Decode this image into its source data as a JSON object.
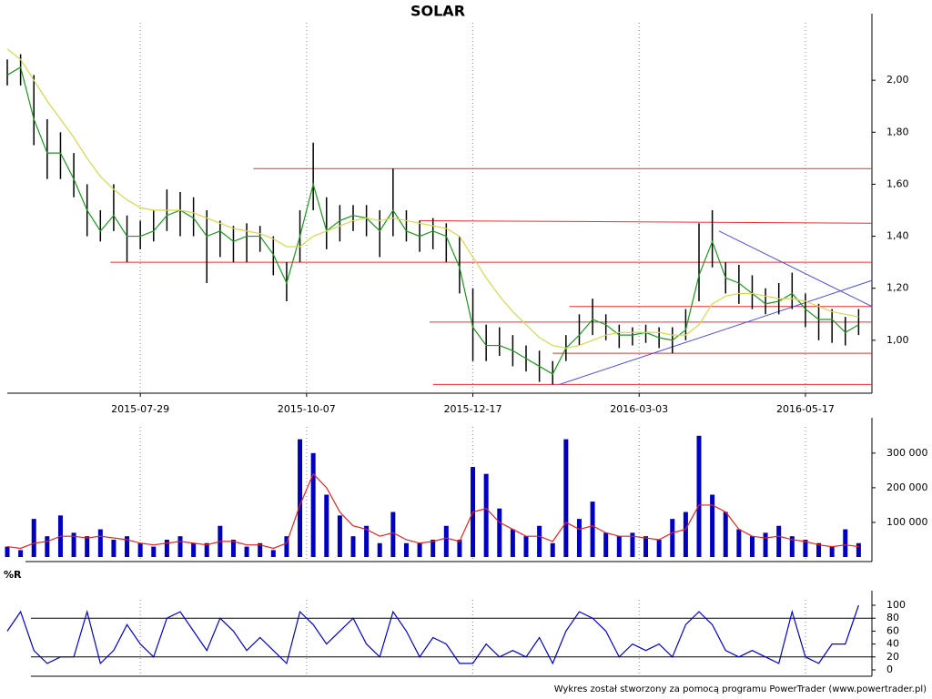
{
  "chart_data": [
    {
      "type": "hilo",
      "title": "SOLAR",
      "x": [
        0,
        4,
        8,
        12,
        16,
        20,
        24,
        28,
        32,
        36,
        40,
        44,
        48,
        52,
        56,
        60,
        64,
        68,
        72,
        76,
        80,
        84,
        88,
        92,
        96,
        100,
        104,
        108,
        112,
        116,
        120,
        124,
        128,
        132,
        136,
        140,
        144,
        148,
        152,
        156,
        160,
        164,
        168,
        172,
        176,
        180,
        184,
        188,
        192,
        196,
        200,
        204,
        208,
        212,
        216,
        220,
        224,
        228,
        232,
        236,
        240,
        244,
        248,
        252,
        256
      ],
      "high": [
        2.08,
        2.1,
        2.02,
        1.85,
        1.8,
        1.72,
        1.6,
        1.5,
        1.6,
        1.48,
        1.46,
        1.5,
        1.58,
        1.57,
        1.55,
        1.5,
        1.46,
        1.44,
        1.45,
        1.44,
        1.4,
        1.3,
        1.5,
        1.76,
        1.55,
        1.52,
        1.52,
        1.52,
        1.5,
        1.66,
        1.5,
        1.46,
        1.47,
        1.45,
        1.4,
        1.2,
        1.06,
        1.05,
        1.02,
        0.98,
        0.96,
        0.92,
        1.02,
        1.1,
        1.16,
        1.1,
        1.06,
        1.05,
        1.06,
        1.05,
        1.05,
        1.12,
        1.45,
        1.5,
        1.3,
        1.29,
        1.25,
        1.2,
        1.22,
        1.26,
        1.18,
        1.14,
        1.12,
        1.09,
        1.12
      ],
      "low": [
        1.98,
        1.98,
        1.75,
        1.62,
        1.62,
        1.55,
        1.4,
        1.38,
        1.42,
        1.3,
        1.35,
        1.38,
        1.42,
        1.4,
        1.4,
        1.22,
        1.32,
        1.3,
        1.3,
        1.34,
        1.25,
        1.15,
        1.3,
        1.5,
        1.35,
        1.38,
        1.42,
        1.4,
        1.32,
        1.4,
        1.38,
        1.34,
        1.35,
        1.3,
        1.18,
        0.92,
        0.92,
        0.94,
        0.9,
        0.88,
        0.84,
        0.83,
        0.92,
        0.98,
        1.02,
        1.0,
        0.97,
        0.98,
        0.99,
        0.97,
        0.95,
        1.0,
        1.15,
        1.28,
        1.18,
        1.14,
        1.12,
        1.1,
        1.1,
        1.12,
        1.05,
        1.0,
        0.99,
        0.98,
        1.02
      ],
      "series": [
        {
          "color": "#1a9a1a",
          "values": [
            2.02,
            2.05,
            1.85,
            1.72,
            1.72,
            1.62,
            1.5,
            1.42,
            1.48,
            1.4,
            1.4,
            1.42,
            1.48,
            1.5,
            1.47,
            1.4,
            1.42,
            1.38,
            1.4,
            1.4,
            1.33,
            1.22,
            1.4,
            1.6,
            1.42,
            1.46,
            1.48,
            1.47,
            1.42,
            1.5,
            1.42,
            1.4,
            1.42,
            1.4,
            1.28,
            1.05,
            0.98,
            0.98,
            0.96,
            0.93,
            0.9,
            0.87,
            0.97,
            1.02,
            1.08,
            1.06,
            1.02,
            1.02,
            1.03,
            1.01,
            1.0,
            1.04,
            1.25,
            1.38,
            1.24,
            1.22,
            1.18,
            1.14,
            1.15,
            1.18,
            1.12,
            1.08,
            1.08,
            1.03,
            1.06
          ]
        },
        {
          "color": "#d8d84a",
          "values": [
            2.12,
            2.08,
            2.0,
            1.92,
            1.85,
            1.78,
            1.7,
            1.63,
            1.58,
            1.54,
            1.51,
            1.5,
            1.5,
            1.5,
            1.49,
            1.47,
            1.45,
            1.43,
            1.42,
            1.41,
            1.39,
            1.36,
            1.36,
            1.4,
            1.42,
            1.44,
            1.46,
            1.47,
            1.46,
            1.47,
            1.46,
            1.45,
            1.44,
            1.43,
            1.4,
            1.32,
            1.24,
            1.17,
            1.11,
            1.06,
            1.01,
            0.98,
            0.97,
            0.98,
            1.0,
            1.02,
            1.03,
            1.03,
            1.03,
            1.03,
            1.02,
            1.02,
            1.06,
            1.14,
            1.17,
            1.18,
            1.18,
            1.17,
            1.16,
            1.16,
            1.15,
            1.13,
            1.11,
            1.1,
            1.09
          ]
        }
      ],
      "levels": [
        {
          "color": "#e83030",
          "x": [
            74,
            260
          ],
          "y": [
            1.66,
            1.66
          ]
        },
        {
          "color": "#e83030",
          "x": [
            31,
            260
          ],
          "y": [
            1.3,
            1.3
          ]
        },
        {
          "color": "#e83030",
          "x": [
            124,
            260
          ],
          "y": [
            1.46,
            1.45
          ]
        },
        {
          "color": "#e83030",
          "x": [
            127,
            260
          ],
          "y": [
            1.07,
            1.07
          ]
        },
        {
          "color": "#e83030",
          "x": [
            169,
            260
          ],
          "y": [
            1.13,
            1.13
          ]
        },
        {
          "color": "#e83030",
          "x": [
            164,
            260
          ],
          "y": [
            0.95,
            0.95
          ]
        },
        {
          "color": "#e83030",
          "x": [
            128,
            260
          ],
          "y": [
            0.83,
            0.83
          ]
        },
        {
          "color": "#4a4ae8",
          "x": [
            166,
            260
          ],
          "y": [
            0.83,
            1.23
          ]
        },
        {
          "color": "#4a4ae8",
          "x": [
            214,
            260
          ],
          "y": [
            1.42,
            1.13
          ]
        }
      ],
      "xlim": [
        0,
        260
      ],
      "xticks": [
        {
          "value": 40,
          "label": "2015-07-29"
        },
        {
          "value": 90,
          "label": "2015-10-07"
        },
        {
          "value": 140,
          "label": "2015-12-17"
        },
        {
          "value": 190,
          "label": "2016-03-03"
        },
        {
          "value": 240,
          "label": "2016-05-17"
        }
      ],
      "ylim": [
        0.8,
        2.2
      ],
      "yticks": [
        {
          "value": 1,
          "label": "1,00"
        },
        {
          "value": 1.2,
          "label": "1,20"
        },
        {
          "value": 1.4,
          "label": "1,40"
        },
        {
          "value": 1.6,
          "label": "1,60"
        },
        {
          "value": 1.8,
          "label": "1,80"
        },
        {
          "value": 2,
          "label": "2,00"
        }
      ]
    },
    {
      "type": "bar",
      "color": "#0000c0",
      "x": [
        0,
        4,
        8,
        12,
        16,
        20,
        24,
        28,
        32,
        36,
        40,
        44,
        48,
        52,
        56,
        60,
        64,
        68,
        72,
        76,
        80,
        84,
        88,
        92,
        96,
        100,
        104,
        108,
        112,
        116,
        120,
        124,
        128,
        132,
        136,
        140,
        144,
        148,
        152,
        156,
        160,
        164,
        168,
        172,
        176,
        180,
        184,
        188,
        192,
        196,
        200,
        204,
        208,
        212,
        216,
        220,
        224,
        228,
        232,
        236,
        240,
        244,
        248,
        252,
        256
      ],
      "values": [
        30000,
        20000,
        110000,
        60000,
        120000,
        70000,
        60000,
        80000,
        50000,
        60000,
        40000,
        30000,
        50000,
        60000,
        40000,
        40000,
        90000,
        50000,
        30000,
        40000,
        20000,
        60000,
        340000,
        300000,
        180000,
        120000,
        60000,
        90000,
        40000,
        130000,
        40000,
        40000,
        50000,
        90000,
        50000,
        260000,
        240000,
        140000,
        80000,
        60000,
        90000,
        40000,
        340000,
        110000,
        160000,
        70000,
        60000,
        70000,
        60000,
        50000,
        110000,
        130000,
        350000,
        180000,
        130000,
        80000,
        60000,
        70000,
        90000,
        60000,
        50000,
        40000,
        30000,
        80000,
        40000
      ],
      "series": [
        {
          "color": "#e82020",
          "values": [
            30000,
            25000,
            40000,
            45000,
            60000,
            60000,
            55000,
            60000,
            55000,
            50000,
            40000,
            35000,
            40000,
            45000,
            40000,
            35000,
            45000,
            45000,
            35000,
            35000,
            25000,
            40000,
            150000,
            240000,
            200000,
            130000,
            90000,
            80000,
            60000,
            70000,
            50000,
            40000,
            45000,
            55000,
            45000,
            130000,
            140000,
            100000,
            80000,
            60000,
            60000,
            45000,
            100000,
            80000,
            90000,
            70000,
            60000,
            60000,
            55000,
            50000,
            70000,
            80000,
            150000,
            150000,
            130000,
            80000,
            60000,
            55000,
            60000,
            50000,
            45000,
            35000,
            30000,
            35000,
            30000
          ]
        }
      ],
      "xlim": [
        0,
        260
      ],
      "ylim": [
        0,
        360000
      ],
      "yticks": [
        {
          "value": 100000,
          "label": "100 000"
        },
        {
          "value": 200000,
          "label": "200 000"
        },
        {
          "value": 300000,
          "label": "300 000"
        }
      ]
    },
    {
      "type": "line",
      "label": "%R",
      "x": [
        0,
        4,
        8,
        12,
        16,
        20,
        24,
        28,
        32,
        36,
        40,
        44,
        48,
        52,
        56,
        60,
        64,
        68,
        72,
        76,
        80,
        84,
        88,
        92,
        96,
        100,
        104,
        108,
        112,
        116,
        120,
        124,
        128,
        132,
        136,
        140,
        144,
        148,
        152,
        156,
        160,
        164,
        168,
        172,
        176,
        180,
        184,
        188,
        192,
        196,
        200,
        204,
        208,
        212,
        216,
        220,
        224,
        228,
        232,
        236,
        240,
        244,
        248,
        252,
        256
      ],
      "series": [
        {
          "color": "#0000d0",
          "values": [
            60,
            90,
            30,
            10,
            20,
            20,
            90,
            10,
            30,
            70,
            40,
            20,
            80,
            90,
            60,
            30,
            80,
            60,
            30,
            50,
            30,
            10,
            90,
            70,
            40,
            60,
            80,
            40,
            20,
            90,
            60,
            20,
            50,
            40,
            10,
            10,
            40,
            20,
            30,
            20,
            50,
            10,
            60,
            90,
            80,
            60,
            20,
            40,
            30,
            40,
            20,
            70,
            90,
            70,
            30,
            20,
            30,
            20,
            10,
            90,
            20,
            10,
            40,
            40,
            100
          ]
        }
      ],
      "hlines": [
        20,
        80
      ],
      "xlim": [
        0,
        260
      ],
      "ylim": [
        0,
        100
      ],
      "yticks": [
        0,
        20,
        40,
        60,
        80,
        100
      ]
    }
  ],
  "footer": "Wykres został stworzony za pomocą programu PowerTrader (www.powertrader.pl)"
}
